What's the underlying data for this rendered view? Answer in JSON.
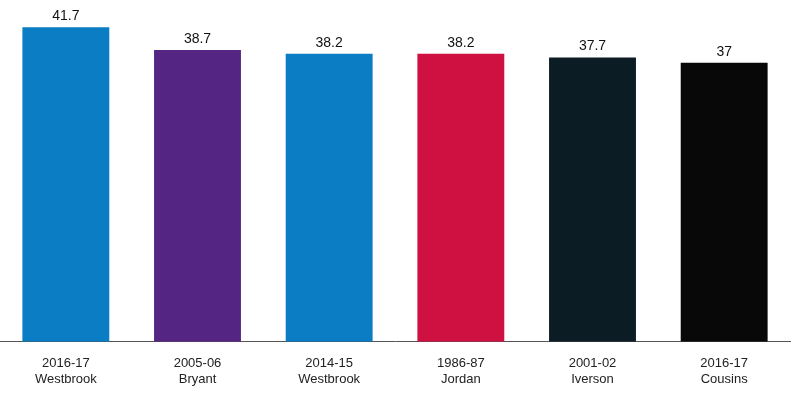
{
  "chart_data": {
    "type": "bar",
    "categories": [
      "2016-17\nWestbrook",
      "2005-06\nBryant",
      "2014-15\nWestbrook",
      "1986-87\nJordan",
      "2001-02\nIverson",
      "2016-17\nCousins"
    ],
    "values": [
      41.7,
      38.7,
      38.2,
      38.2,
      37.7,
      37
    ],
    "colors": [
      "#0a7dc4",
      "#552583",
      "#0a7dc4",
      "#ce1141",
      "#0b1c24",
      "#080808"
    ],
    "ylim": [
      0,
      44
    ],
    "grid": false,
    "data_labels": true,
    "tick_labels": "x"
  }
}
